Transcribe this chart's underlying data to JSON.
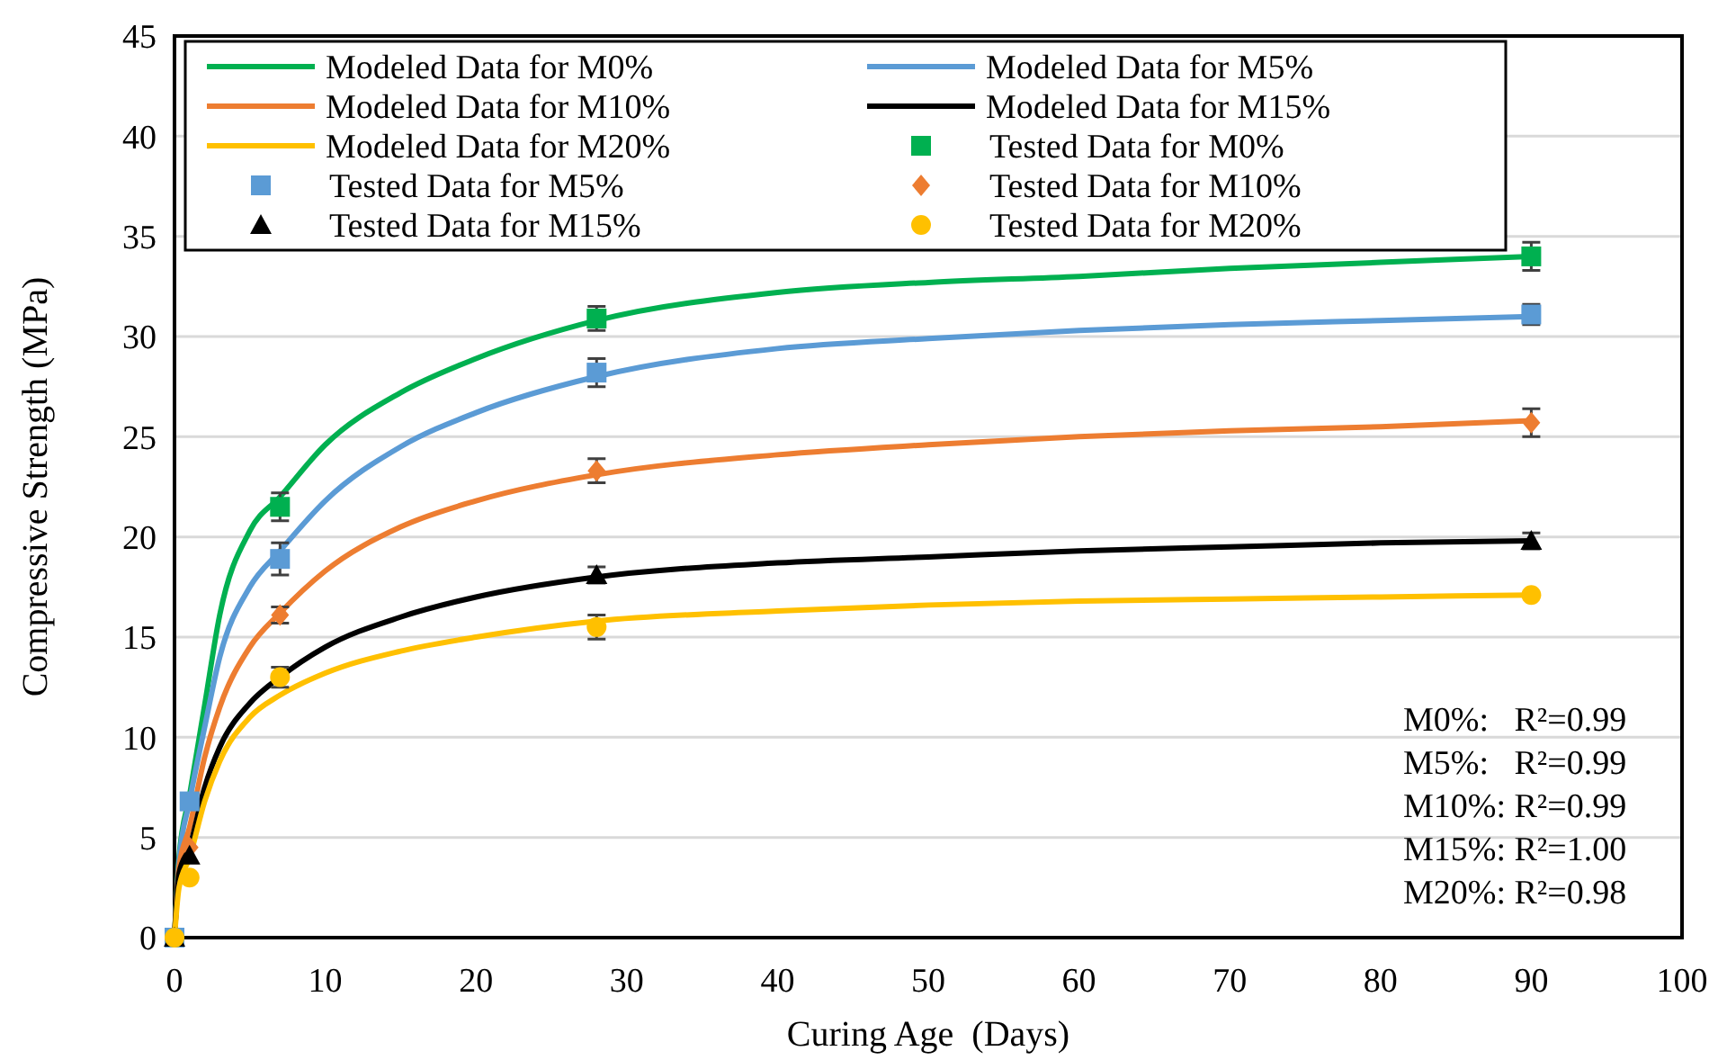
{
  "chart_data": {
    "type": "line",
    "xlabel": "Curing Age  (Days)",
    "ylabel": "Compressive Strength (MPa)",
    "xlim": [
      0,
      100
    ],
    "xticks": [
      0,
      10,
      20,
      30,
      40,
      50,
      60,
      70,
      80,
      90,
      100
    ],
    "ylim": [
      0,
      45
    ],
    "yticks": [
      0,
      5,
      10,
      15,
      20,
      25,
      30,
      35,
      40,
      45
    ],
    "grid": "y",
    "legend": "top",
    "line_style": "solid",
    "annotations": [
      "M0%:   R²=0.99",
      "M5%:   R²=0.99",
      "M10%: R²=0.99",
      "M15%: R²=1.00",
      "M20%: R²=0.98"
    ],
    "series": [
      {
        "name": "Modeled Data for M0%",
        "color": "#00b050",
        "marker": "none",
        "x": [
          0,
          0.3,
          1,
          2,
          3,
          5,
          7,
          10,
          15,
          20,
          28,
          40,
          50,
          60,
          70,
          80,
          90
        ],
        "values": [
          0,
          4,
          7.1,
          11.6,
          16.1,
          20.3,
          22.0,
          24.6,
          27.2,
          28.9,
          30.8,
          32.2,
          32.7,
          33.0,
          33.4,
          33.7,
          34.0
        ]
      },
      {
        "name": "Modeled Data for M5%",
        "color": "#5b9bd5",
        "marker": "none",
        "x": [
          0,
          0.3,
          1,
          2,
          3,
          5,
          7,
          10,
          15,
          20,
          28,
          40,
          50,
          60,
          70,
          80,
          90
        ],
        "values": [
          0,
          3.8,
          6.8,
          10.5,
          14,
          17.5,
          19.3,
          21.8,
          24.5,
          26.2,
          28.0,
          29.4,
          29.9,
          30.3,
          30.6,
          30.8,
          31.0
        ]
      },
      {
        "name": "Modeled Data for M10%",
        "color": "#ed7d31",
        "marker": "none",
        "x": [
          0,
          0.3,
          1,
          2,
          3,
          5,
          7,
          10,
          15,
          20,
          28,
          40,
          50,
          60,
          70,
          80,
          90
        ],
        "values": [
          0,
          3.5,
          5.5,
          9,
          11.5,
          14.5,
          16.2,
          18.3,
          20.5,
          21.8,
          23.1,
          24.1,
          24.6,
          25.0,
          25.3,
          25.5,
          25.8
        ]
      },
      {
        "name": "Modeled Data for M15%",
        "color": "#000000",
        "marker": "none",
        "x": [
          0,
          0.3,
          1,
          2,
          3,
          5,
          7,
          10,
          15,
          20,
          28,
          40,
          50,
          60,
          70,
          80,
          90
        ],
        "values": [
          0,
          3.2,
          4.5,
          7.5,
          9.5,
          11.7,
          13.0,
          14.5,
          16.0,
          17.0,
          18.0,
          18.7,
          19.0,
          19.3,
          19.5,
          19.7,
          19.8
        ]
      },
      {
        "name": "Modeled Data for M20%",
        "color": "#ffc000",
        "marker": "none",
        "x": [
          0,
          0.3,
          1,
          2,
          3,
          5,
          7,
          10,
          15,
          20,
          28,
          40,
          50,
          60,
          70,
          80,
          90
        ],
        "values": [
          0,
          2.5,
          4,
          6.8,
          8.8,
          11,
          12.1,
          13.2,
          14.3,
          15.0,
          15.8,
          16.3,
          16.6,
          16.8,
          16.9,
          17.0,
          17.1
        ]
      },
      {
        "name": "Tested Data for M0%",
        "type": "scatter",
        "color": "#00b050",
        "marker": "square",
        "x": [
          7,
          28,
          90
        ],
        "values": [
          21.5,
          30.9,
          34.0
        ],
        "errors": [
          0.7,
          0.6,
          0.7
        ]
      },
      {
        "name": "Tested Data for M5%",
        "type": "scatter",
        "color": "#5b9bd5",
        "marker": "square",
        "x": [
          0,
          1,
          7,
          28,
          90
        ],
        "values": [
          0,
          6.8,
          18.9,
          28.2,
          31.1
        ],
        "errors": [
          null,
          null,
          0.8,
          0.7,
          0.5
        ]
      },
      {
        "name": "Tested Data for M10%",
        "type": "scatter",
        "color": "#ed7d31",
        "marker": "diamond",
        "x": [
          1,
          7,
          28,
          90
        ],
        "values": [
          4.5,
          16.1,
          23.3,
          25.7
        ],
        "errors": [
          null,
          0.4,
          0.6,
          0.7
        ]
      },
      {
        "name": "Tested Data for M15%",
        "type": "scatter",
        "color": "#000000",
        "marker": "triangle",
        "x": [
          0,
          1,
          28,
          90
        ],
        "values": [
          0,
          4.1,
          18.1,
          19.8
        ],
        "errors": [
          null,
          null,
          0.4,
          0.4
        ]
      },
      {
        "name": "Tested Data for M20%",
        "type": "scatter",
        "color": "#ffc000",
        "marker": "circle",
        "x": [
          0,
          1,
          7,
          28,
          90
        ],
        "values": [
          0,
          3.0,
          13.0,
          15.5,
          17.1
        ],
        "errors": [
          null,
          null,
          0.5,
          0.6,
          null
        ]
      }
    ]
  }
}
